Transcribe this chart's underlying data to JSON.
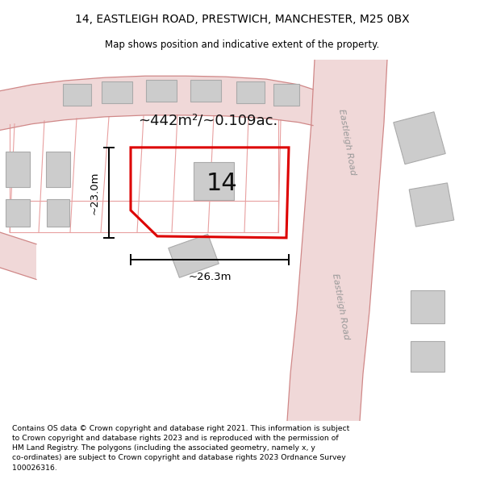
{
  "title_line1": "14, EASTLEIGH ROAD, PRESTWICH, MANCHESTER, M25 0BX",
  "title_line2": "Map shows position and indicative extent of the property.",
  "road_label_1": "Eastleigh Road",
  "road_label_2": "Eastleigh Road",
  "property_label": "14",
  "area_label": "~442m²/~0.109ac.",
  "width_label": "~26.3m",
  "height_label": "~23.0m",
  "footer_lines": [
    "Contains OS data © Crown copyright and database right 2021. This information is subject to Crown copyright and database rights 2023 and is reproduced with the permission of",
    "HM Land Registry. The polygons (including the associated geometry, namely x, y co-ordinates) are subject to Crown copyright and database rights 2023 Ordnance Survey",
    "100026316."
  ],
  "map_bg": "#efefef",
  "road_fill": "#f0d8d8",
  "road_edge": "#d08888",
  "plot_line": "#e8a0a0",
  "building_fill": "#cccccc",
  "building_edge": "#aaaaaa",
  "red_poly_color": "#dd0000",
  "text_dark": "#111111",
  "text_gray": "#999999",
  "white": "#ffffff"
}
